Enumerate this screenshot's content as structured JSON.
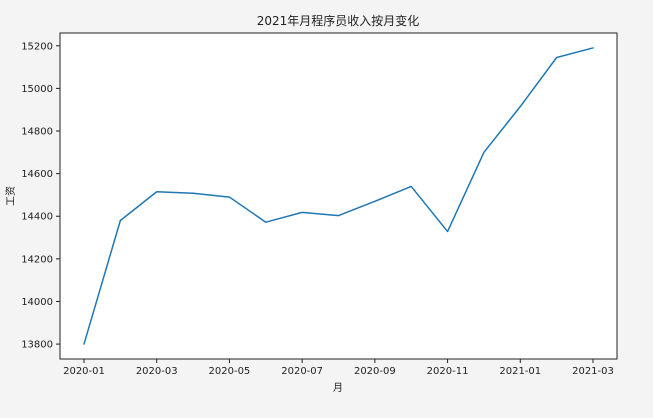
{
  "chart_data": {
    "type": "line",
    "title": "2021年月程序员收入按月变化",
    "xlabel": "月",
    "ylabel": "工资",
    "x": [
      "2020-01",
      "2020-02",
      "2020-03",
      "2020-04",
      "2020-05",
      "2020-06",
      "2020-07",
      "2020-08",
      "2020-09",
      "2020-10",
      "2020-11",
      "2020-12",
      "2021-01",
      "2021-02",
      "2021-03"
    ],
    "series": [
      {
        "values": [
          13800,
          14380,
          14515,
          14508,
          14490,
          14372,
          14418,
          14403,
          14470,
          14540,
          14328,
          14700,
          14915,
          15145,
          15190
        ]
      }
    ],
    "x_ticks": [
      "2020-01",
      "2020-03",
      "2020-05",
      "2020-07",
      "2020-09",
      "2020-11",
      "2021-01",
      "2021-03"
    ],
    "y_ticks": [
      13800,
      14000,
      14200,
      14400,
      14600,
      14800,
      15000,
      15200
    ],
    "ylim": [
      13730,
      15260
    ],
    "grid": false,
    "line_color": "#1f77b4"
  }
}
